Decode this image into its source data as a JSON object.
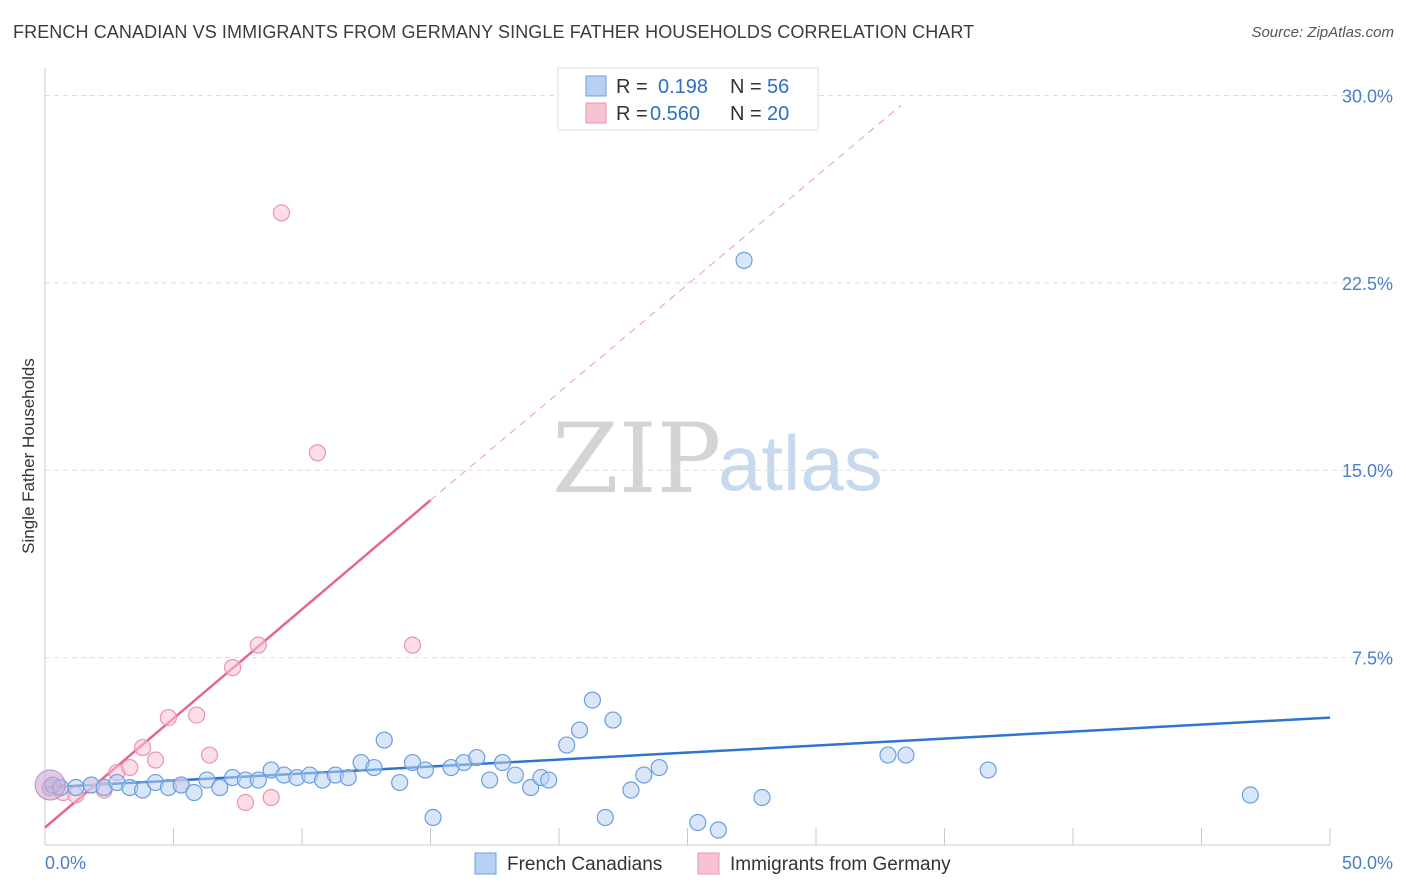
{
  "title": "FRENCH CANADIAN VS IMMIGRANTS FROM GERMANY SINGLE FATHER HOUSEHOLDS CORRELATION CHART",
  "source": "Source: ZipAtlas.com",
  "watermark": {
    "zip": "ZIP",
    "atlas": "atlas"
  },
  "colors": {
    "blue": "#2f74cf",
    "blue_fill": "#b8d1f3",
    "blue_stroke": "#6a9fe0",
    "pink": "#e5668f",
    "pink_fill": "#f7c3d3",
    "pink_stroke": "#ec93b0",
    "grid": "#dddddd",
    "tick_label": "#4a7fc7"
  },
  "legend": {
    "rows": [
      {
        "r_label": "R = ",
        "r_value": "0.198",
        "n_label": "N = ",
        "n_value": "56"
      },
      {
        "r_label": "R = ",
        "r_value": "0.560",
        "n_label": "N = ",
        "n_value": "20"
      }
    ]
  },
  "chart_data": {
    "type": "scatter",
    "title": "FRENCH CANADIAN VS IMMIGRANTS FROM GERMANY SINGLE FATHER HOUSEHOLDS CORRELATION CHART",
    "xlabel": "",
    "ylabel": "Single Father Households",
    "xlim": [
      0,
      50
    ],
    "ylim": [
      0,
      31.5
    ],
    "x_tick_labels": [
      "0.0%",
      "50.0%"
    ],
    "y_ticks": [
      7.5,
      15.0,
      22.5,
      30.0
    ],
    "y_tick_labels": [
      "7.5%",
      "15.0%",
      "22.5%",
      "30.0%"
    ],
    "grid": true,
    "legend_placement": "top-center",
    "series": [
      {
        "name": "French Canadians",
        "color": "blue",
        "r": 0.198,
        "n": 56,
        "trend": {
          "x": [
            0,
            50
          ],
          "y": [
            2.3,
            5.1
          ]
        },
        "points": [
          [
            0.3,
            2.4
          ],
          [
            0.6,
            2.3
          ],
          [
            1.2,
            2.3
          ],
          [
            1.8,
            2.4
          ],
          [
            2.3,
            2.3
          ],
          [
            2.8,
            2.5
          ],
          [
            3.3,
            2.3
          ],
          [
            3.8,
            2.2
          ],
          [
            4.3,
            2.5
          ],
          [
            4.8,
            2.3
          ],
          [
            5.3,
            2.4
          ],
          [
            5.8,
            2.1
          ],
          [
            6.3,
            2.6
          ],
          [
            6.8,
            2.3
          ],
          [
            7.3,
            2.7
          ],
          [
            7.8,
            2.6
          ],
          [
            8.3,
            2.6
          ],
          [
            8.8,
            3.0
          ],
          [
            9.3,
            2.8
          ],
          [
            9.8,
            2.7
          ],
          [
            10.3,
            2.8
          ],
          [
            10.8,
            2.6
          ],
          [
            11.3,
            2.8
          ],
          [
            11.8,
            2.7
          ],
          [
            12.3,
            3.3
          ],
          [
            12.8,
            3.1
          ],
          [
            13.2,
            4.2
          ],
          [
            13.8,
            2.5
          ],
          [
            14.3,
            3.3
          ],
          [
            14.8,
            3.0
          ],
          [
            15.1,
            1.1
          ],
          [
            15.8,
            3.1
          ],
          [
            16.3,
            3.3
          ],
          [
            16.8,
            3.5
          ],
          [
            17.3,
            2.6
          ],
          [
            17.8,
            3.3
          ],
          [
            18.3,
            2.8
          ],
          [
            18.9,
            2.3
          ],
          [
            19.3,
            2.7
          ],
          [
            19.6,
            2.6
          ],
          [
            20.3,
            4.0
          ],
          [
            20.8,
            4.6
          ],
          [
            21.3,
            5.8
          ],
          [
            21.8,
            1.1
          ],
          [
            22.1,
            5.0
          ],
          [
            22.8,
            2.2
          ],
          [
            23.3,
            2.8
          ],
          [
            23.9,
            3.1
          ],
          [
            25.4,
            0.9
          ],
          [
            26.2,
            0.6
          ],
          [
            27.2,
            23.4
          ],
          [
            27.9,
            1.9
          ],
          [
            32.8,
            3.6
          ],
          [
            33.5,
            3.6
          ],
          [
            36.7,
            3.0
          ],
          [
            46.9,
            2.0
          ]
        ]
      },
      {
        "name": "Immigrants from Germany",
        "color": "pink",
        "r": 0.56,
        "n": 20,
        "trend": {
          "x": [
            0,
            15
          ],
          "y": [
            0.7,
            13.8
          ]
        },
        "trend_extension": {
          "x": [
            15,
            33.3
          ],
          "y": [
            13.8,
            29.6
          ]
        },
        "points": [
          [
            0.2,
            2.3
          ],
          [
            0.7,
            2.1
          ],
          [
            1.2,
            2.0
          ],
          [
            1.8,
            2.4
          ],
          [
            2.3,
            2.2
          ],
          [
            2.8,
            2.9
          ],
          [
            3.3,
            3.1
          ],
          [
            3.8,
            3.9
          ],
          [
            4.3,
            3.4
          ],
          [
            4.8,
            5.1
          ],
          [
            5.3,
            2.4
          ],
          [
            5.9,
            5.2
          ],
          [
            6.4,
            3.6
          ],
          [
            7.3,
            7.1
          ],
          [
            7.8,
            1.7
          ],
          [
            8.3,
            8.0
          ],
          [
            8.8,
            1.9
          ],
          [
            9.2,
            25.3
          ],
          [
            10.6,
            15.7
          ],
          [
            14.3,
            8.0
          ]
        ]
      }
    ]
  }
}
